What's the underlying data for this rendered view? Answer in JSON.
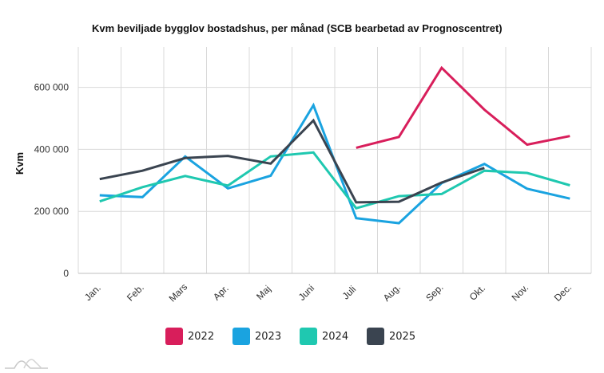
{
  "chart_data": {
    "type": "line",
    "title": "Kvm beviljade bygglov bostadshus, per månad (SCB bearbetad av Prognoscentret)",
    "xlabel": "",
    "ylabel": "Kvm",
    "categories": [
      "Jan.",
      "Feb.",
      "Mars",
      "Apr.",
      "Maj",
      "Juni",
      "Juli",
      "Aug.",
      "Sep.",
      "Okt.",
      "Nov.",
      "Dec."
    ],
    "ylim": [
      0,
      730000
    ],
    "yticks": [
      0,
      200000,
      400000,
      600000
    ],
    "ytick_labels": [
      "0",
      "200 000",
      "400 000",
      "600 000"
    ],
    "grid": true,
    "legend_position": "bottom",
    "series": [
      {
        "name": "2022",
        "color": "#d81e5b",
        "values": [
          null,
          null,
          null,
          null,
          null,
          null,
          405000,
          440000,
          663000,
          528000,
          415000,
          443000
        ]
      },
      {
        "name": "2023",
        "color": "#1aa3e0",
        "values": [
          252000,
          246000,
          377000,
          274000,
          315000,
          542000,
          178000,
          162000,
          291000,
          353000,
          273000,
          241000
        ]
      },
      {
        "name": "2024",
        "color": "#1fc8b0",
        "values": [
          232000,
          278000,
          314000,
          283000,
          377000,
          390000,
          210000,
          249000,
          256000,
          331000,
          324000,
          284000
        ]
      },
      {
        "name": "2025",
        "color": "#3a4450",
        "values": [
          304000,
          331000,
          372000,
          379000,
          354000,
          493000,
          229000,
          231000,
          293000,
          340000,
          null,
          null
        ]
      }
    ]
  },
  "logo": {
    "icon": "mountain-wave-logo-icon"
  }
}
